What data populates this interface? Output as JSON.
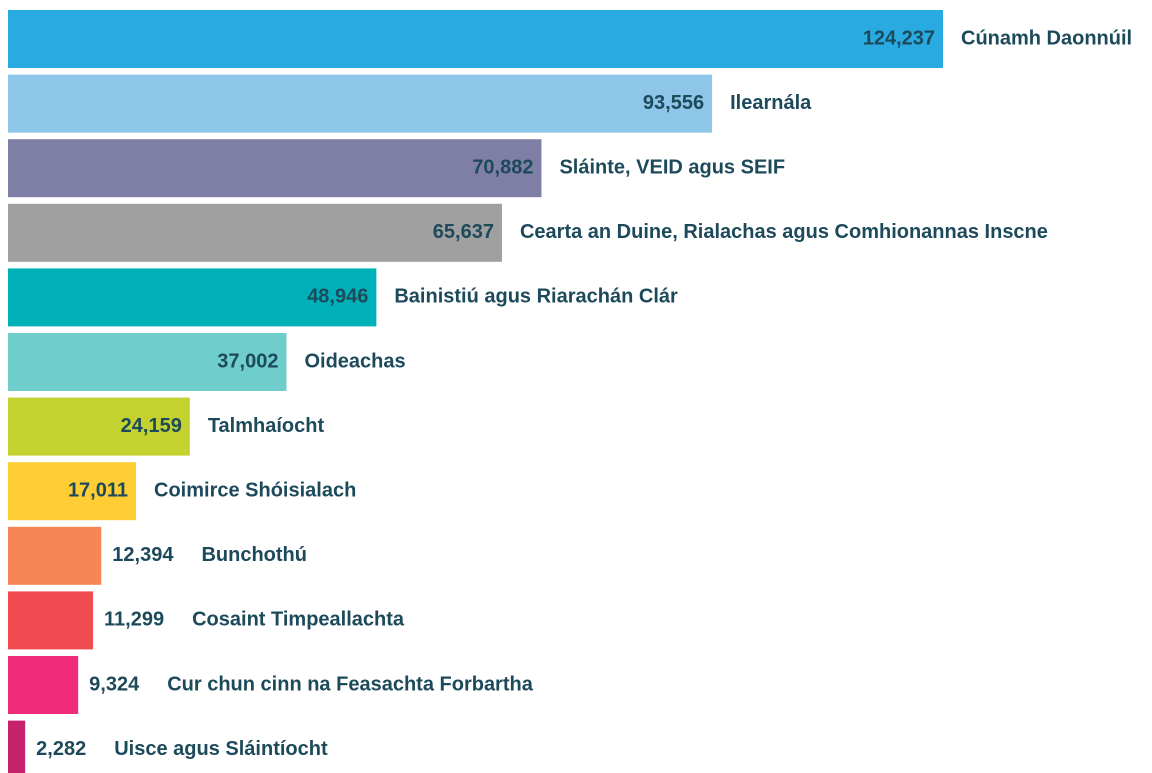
{
  "chart_data": {
    "type": "bar",
    "orientation": "horizontal",
    "categories": [
      "Cúnamh Daonnúil",
      "Ilearnála",
      "Sláinte, VEID agus SEIF",
      "Cearta an Duine, Rialachas agus Comhionannas Inscne",
      "Bainistiú agus Riarachán Clár",
      "Oideachas",
      "Talmhaíocht",
      "Coimirce Shóisialach",
      "Bunchothú",
      "Cosaint Timpeallachta",
      "Cur chun cinn na Feasachta Forbartha",
      "Uisce agus Sláintíocht"
    ],
    "values": [
      124237,
      93556,
      70882,
      65637,
      48946,
      37002,
      24159,
      17011,
      12394,
      11299,
      9324,
      2282
    ],
    "value_labels": [
      "124,237",
      "93,556",
      "70,882",
      "65,637",
      "48,946",
      "37,002",
      "24,159",
      "17,011",
      "12,394",
      "11,299",
      "9,324",
      "2,282"
    ],
    "colors": [
      "#29abe2",
      "#8ec6ea",
      "#7f7fa6",
      "#a0a0a0",
      "#00b0b9",
      "#6fcdcb",
      "#c4d22f",
      "#ffcd34",
      "#f68655",
      "#ef4b50",
      "#ee2c7a",
      "#c6236b"
    ]
  }
}
